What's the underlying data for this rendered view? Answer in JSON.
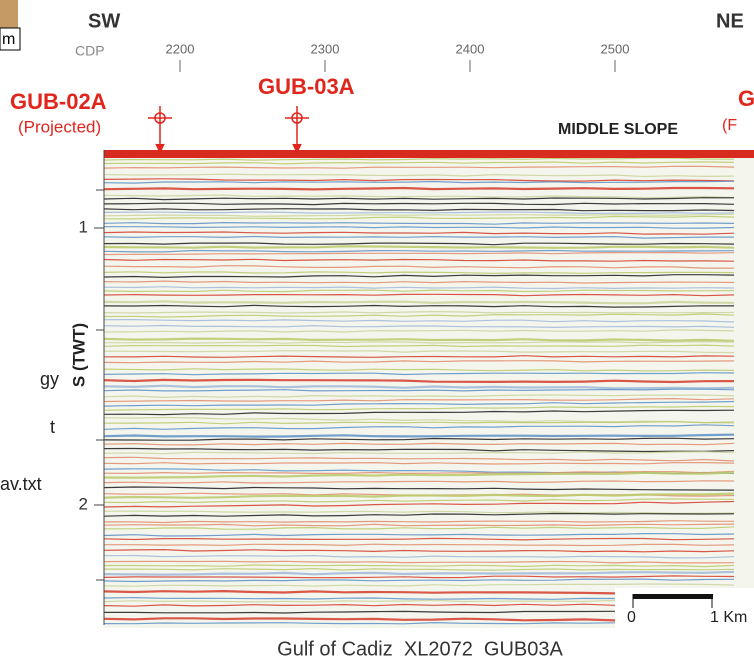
{
  "header": {
    "left_direction": "SW",
    "right_direction": "NE",
    "inset_label": "m"
  },
  "x_axis": {
    "label": "CDP",
    "ticks": [
      2200,
      2300,
      2400,
      2500
    ]
  },
  "y_axis": {
    "label": "S (TWT)",
    "ticks": [
      1,
      2
    ]
  },
  "wells": [
    {
      "name": "GUB-02A",
      "note": "(Projected)"
    },
    {
      "name": "GUB-03A"
    },
    {
      "name": "G",
      "note": "(F"
    }
  ],
  "zone_label": "MIDDLE SLOPE",
  "side_texts": [
    "gy",
    "t",
    "av.txt"
  ],
  "scale_bar": {
    "start": "0",
    "end": "1 Km"
  },
  "caption": "Gulf of Cadiz  XL2072  GUB03A"
}
